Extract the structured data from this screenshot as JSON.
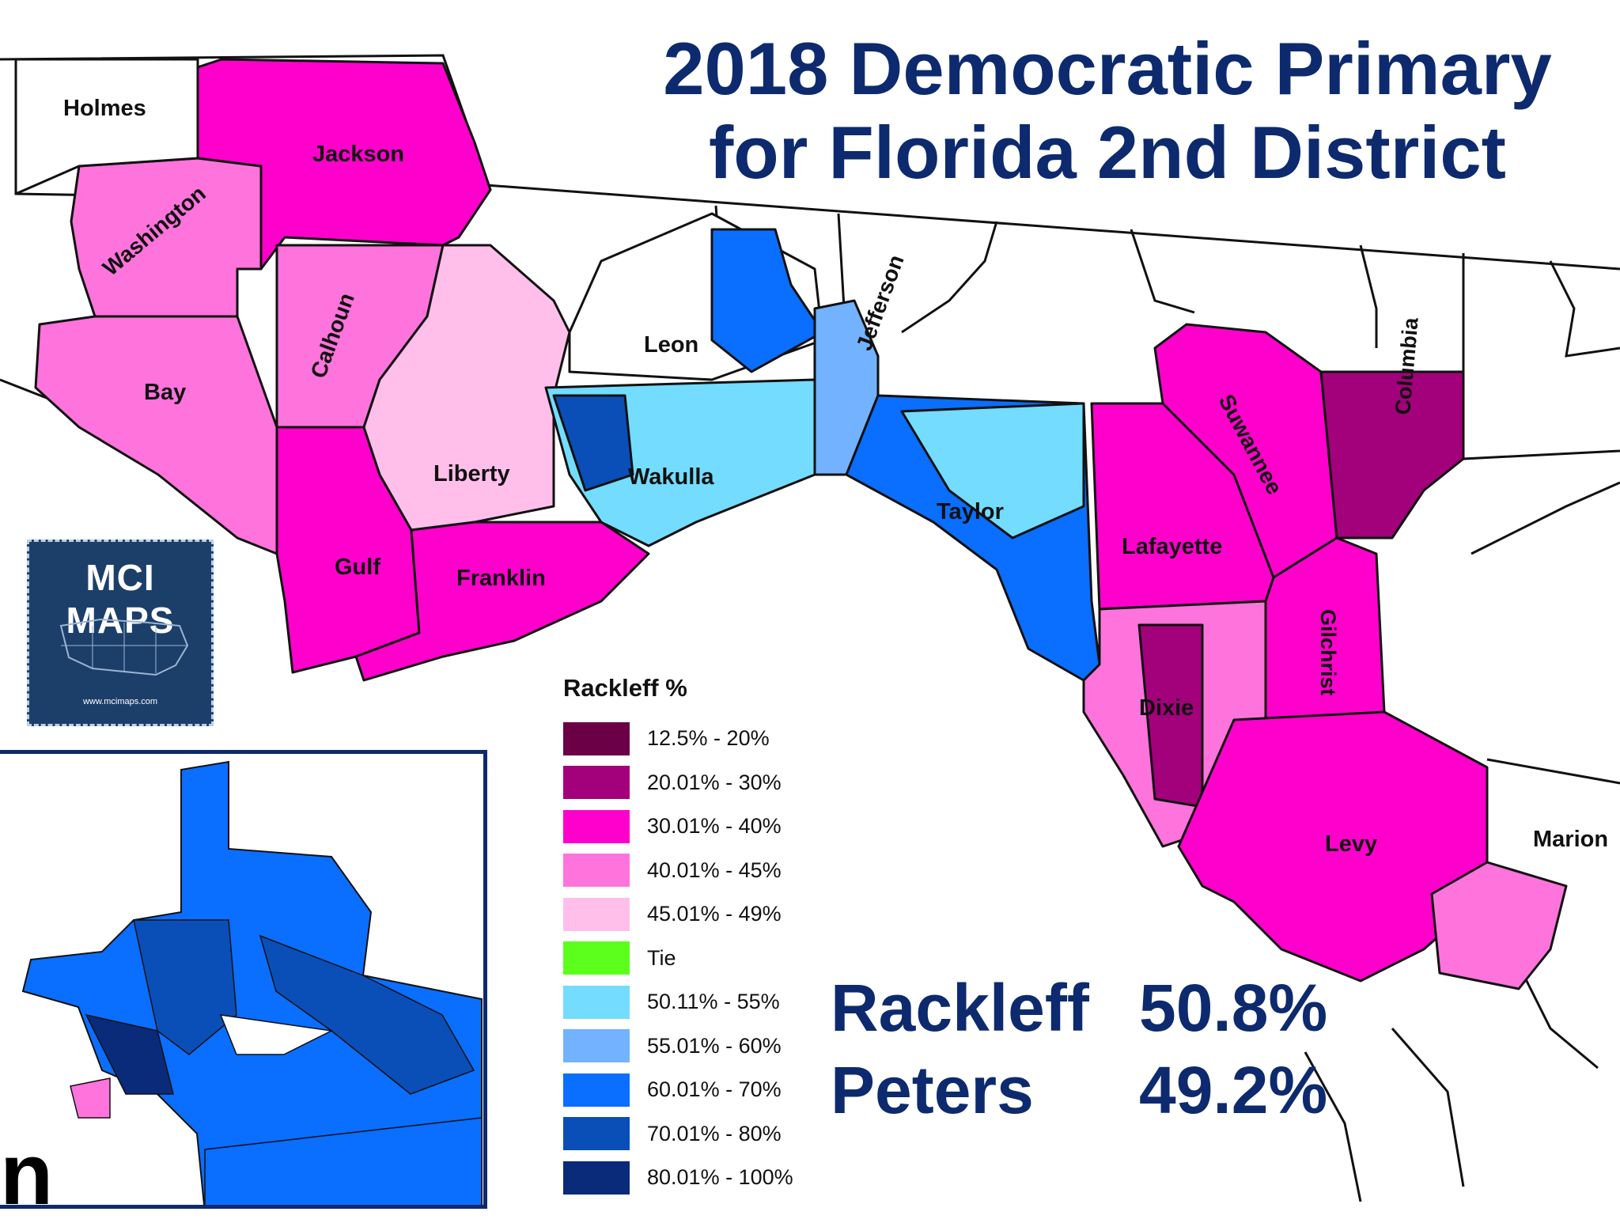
{
  "title": {
    "line1": "2018 Democratic Primary",
    "line2": "for Florida 2nd District"
  },
  "counties": [
    "Holmes",
    "Jackson",
    "Washington",
    "Calhoun",
    "Bay",
    "Liberty",
    "Gulf",
    "Franklin",
    "Leon",
    "Wakulla",
    "Jefferson",
    "Taylor",
    "Lafayette",
    "Suwannee",
    "Columbia",
    "Gilchrist",
    "Dixie",
    "Levy",
    "Marion"
  ],
  "legend": {
    "title": "Rackleff %",
    "items": [
      {
        "label": "12.5% - 20%",
        "color": "#6b0046"
      },
      {
        "label": "20.01% - 30%",
        "color": "#a3007b"
      },
      {
        "label": "30.01% - 40%",
        "color": "#ff00cc"
      },
      {
        "label": "40.01% - 45%",
        "color": "#ff73dc"
      },
      {
        "label": "45.01% - 49%",
        "color": "#ffbfea"
      },
      {
        "label": "Tie",
        "color": "#5cff1c"
      },
      {
        "label": "50.11% - 55%",
        "color": "#73dcff"
      },
      {
        "label": "55.01% - 60%",
        "color": "#73b2ff"
      },
      {
        "label": "60.01% - 70%",
        "color": "#0a6eff"
      },
      {
        "label": "70.01% - 80%",
        "color": "#0a4fb8"
      },
      {
        "label": "80.01% - 100%",
        "color": "#0a2a7a"
      }
    ]
  },
  "results": [
    {
      "name": "Rackleff",
      "pct": "50.8%"
    },
    {
      "name": "Peters",
      "pct": "49.2%"
    }
  ],
  "badge": {
    "title": "MCI MAPS",
    "url": "www.mcimaps.com"
  },
  "inset_label": "n"
}
